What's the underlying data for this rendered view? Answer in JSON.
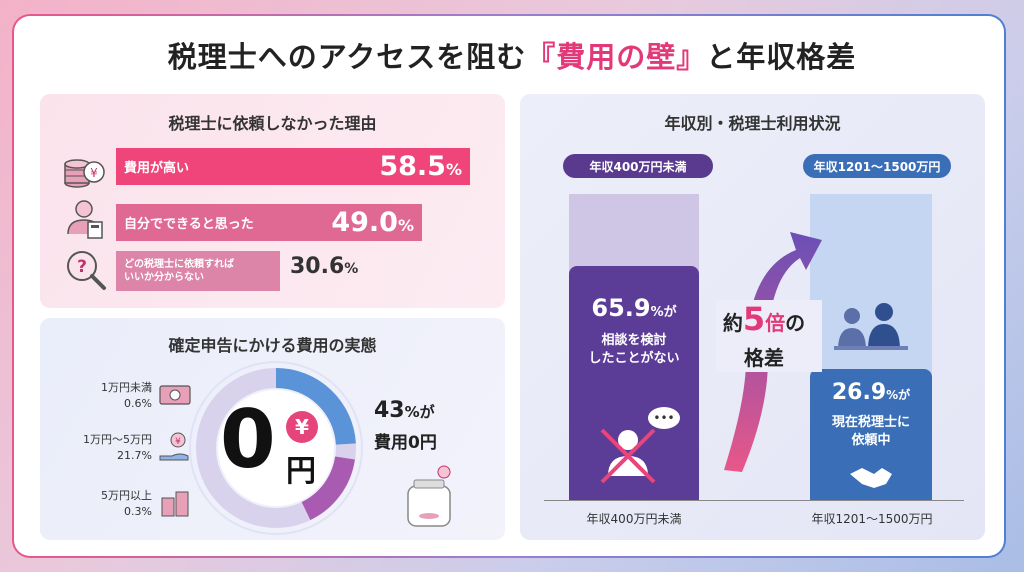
{
  "title": {
    "prefix": "税理士へのアクセスを阻む",
    "highlight": "『費用の壁』",
    "suffix": "と年収格差"
  },
  "reasons": {
    "title": "税理士に依頼しなかった理由",
    "items": [
      {
        "label": "費用が高い",
        "value": "58.5",
        "unit": "%"
      },
      {
        "label": "自分でできると思った",
        "value": "49.0",
        "unit": "%"
      },
      {
        "label": "どの税理士に依頼すれば\nいいか分からない",
        "value": "30.6",
        "unit": "%"
      }
    ],
    "colors": [
      "#f0457a",
      "#e06994",
      "#dc85a8"
    ]
  },
  "cost": {
    "title": "確定申告にかける費用の実態",
    "center_value": "0",
    "center_unit": "円",
    "yen_symbol": "¥",
    "legend": [
      {
        "label": "1万円未満",
        "value": "0.6%"
      },
      {
        "label": "1万円〜5万円",
        "value": "21.7%"
      },
      {
        "label": "5万円以上",
        "value": "0.3%"
      }
    ],
    "callout_value": "43",
    "callout_unit": "%が",
    "callout_text": "費用0円"
  },
  "income": {
    "title": "年収別・税理士利用状況",
    "left_tag": "年収400万円未満",
    "right_tag": "年収1201〜1500万円",
    "left_value": "65.9",
    "left_unit": "%が",
    "left_text_1": "相談を検討",
    "left_text_2": "したことがない",
    "right_value": "26.9",
    "right_unit": "%が",
    "right_text_1": "現在税理士に",
    "right_text_2": "依頼中",
    "gap_prefix": "約",
    "gap_value": "5",
    "gap_unit": "倍",
    "gap_suffix": "の",
    "gap_word": "格差",
    "left_caption": "年収400万円未満",
    "right_caption": "年収1201〜1500万円",
    "bubble_text": "•••"
  },
  "chart_data": [
    {
      "type": "bar",
      "title": "税理士に依頼しなかった理由",
      "categories": [
        "費用が高い",
        "自分でできると思った",
        "どの税理士に依頼すればいいか分からない"
      ],
      "values": [
        58.5,
        49.0,
        30.6
      ]
    },
    {
      "type": "pie",
      "title": "確定申告にかける費用の実態",
      "categories": [
        "費用0円",
        "1万円未満",
        "1万円〜5万円",
        "5万円以上"
      ],
      "values": [
        43,
        0.6,
        21.7,
        0.3
      ]
    },
    {
      "type": "bar",
      "title": "年収別・税理士利用状況",
      "categories": [
        "年収400万円未満",
        "年収1201〜1500万円"
      ],
      "values": [
        65.9,
        26.9
      ]
    }
  ]
}
